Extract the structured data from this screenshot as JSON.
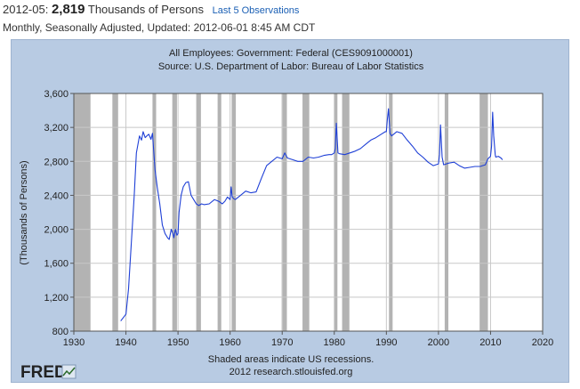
{
  "header": {
    "date": "2012-05:",
    "value": "2,819",
    "units": "Thousands of Persons",
    "last_obs_link": "Last 5 Observations",
    "subtitle": "Monthly, Seasonally Adjusted, Updated: 2012-06-01 8:45 AM CDT"
  },
  "footer": {
    "logo": "FRED",
    "note": "Shaded areas indicate US recessions.",
    "source": "2012 research.stlouisfed.org"
  },
  "colors": {
    "panel": "#b8cbe3",
    "line": "#1e3fd6",
    "recession": "#b3b3b3"
  },
  "chart_data": {
    "type": "line",
    "title": "All Employees: Government: Federal (CES9091000001)",
    "subtitle": "Source: U.S. Department of Labor: Bureau of Labor Statistics",
    "xlabel": "",
    "ylabel": "(Thousands of Persons)",
    "xlim": [
      1930,
      2020
    ],
    "ylim": [
      800,
      3600
    ],
    "x_ticks": [
      "1930",
      "1940",
      "1950",
      "1960",
      "1970",
      "1980",
      "1990",
      "2000",
      "2010",
      "2020"
    ],
    "y_ticks": [
      "800",
      "1,200",
      "1,600",
      "2,000",
      "2,400",
      "2,800",
      "3,200",
      "3,600"
    ],
    "grid": true,
    "recessions": [
      [
        1929.6,
        1933.2
      ],
      [
        1937.4,
        1938.5
      ],
      [
        1945.1,
        1945.8
      ],
      [
        1948.9,
        1949.8
      ],
      [
        1953.5,
        1954.4
      ],
      [
        1957.6,
        1958.3
      ],
      [
        1960.3,
        1961.1
      ],
      [
        1969.9,
        1970.9
      ],
      [
        1973.9,
        1975.2
      ],
      [
        1980.0,
        1980.6
      ],
      [
        1981.5,
        1982.9
      ],
      [
        1990.5,
        1991.2
      ],
      [
        2001.2,
        2001.9
      ],
      [
        2007.9,
        2009.5
      ]
    ],
    "series": [
      {
        "name": "",
        "x": [
          1939.0,
          1940.0,
          1940.5,
          1941.0,
          1941.6,
          1942.0,
          1942.6,
          1943.0,
          1943.3,
          1943.7,
          1944.0,
          1944.4,
          1944.8,
          1945.1,
          1945.3,
          1945.6,
          1946.0,
          1946.5,
          1947.0,
          1947.5,
          1948.0,
          1948.3,
          1948.7,
          1949.0,
          1949.2,
          1949.5,
          1949.8,
          1950.0,
          1950.2,
          1950.6,
          1951.0,
          1951.5,
          1952.0,
          1952.5,
          1953.0,
          1953.5,
          1954.0,
          1954.5,
          1955.0,
          1956.0,
          1957.0,
          1957.8,
          1958.5,
          1959.0,
          1959.5,
          1960.0,
          1960.2,
          1960.4,
          1960.7,
          1961.0,
          1962.0,
          1963.0,
          1964.0,
          1965.0,
          1966.0,
          1967.0,
          1968.0,
          1969.0,
          1970.0,
          1970.5,
          1971.0,
          1972.0,
          1973.0,
          1974.0,
          1975.0,
          1976.0,
          1977.0,
          1978.0,
          1979.0,
          1979.5,
          1980.0,
          1980.2,
          1980.4,
          1980.7,
          1981.0,
          1982.0,
          1983.0,
          1984.0,
          1985.0,
          1986.0,
          1987.0,
          1988.0,
          1989.0,
          1989.8,
          1990.0,
          1990.2,
          1990.4,
          1990.7,
          1991.0,
          1992.0,
          1993.0,
          1994.0,
          1995.0,
          1996.0,
          1997.0,
          1998.0,
          1999.0,
          2000.0,
          2000.2,
          2000.4,
          2000.7,
          2001.0,
          2002.0,
          2003.0,
          2004.0,
          2005.0,
          2006.0,
          2007.0,
          2008.0,
          2009.0,
          2009.5,
          2010.0,
          2010.2,
          2010.4,
          2010.6,
          2010.9,
          2011.0,
          2011.5,
          2012.0,
          2012.3
        ],
        "values": [
          920,
          1000,
          1300,
          1800,
          2400,
          2900,
          3100,
          3050,
          3150,
          3080,
          3100,
          3120,
          3060,
          3130,
          2950,
          2700,
          2500,
          2300,
          2050,
          1950,
          1900,
          1880,
          2000,
          1950,
          1900,
          2000,
          1930,
          1950,
          2200,
          2400,
          2500,
          2550,
          2560,
          2400,
          2350,
          2300,
          2280,
          2300,
          2290,
          2300,
          2350,
          2330,
          2300,
          2330,
          2380,
          2350,
          2500,
          2380,
          2360,
          2350,
          2400,
          2450,
          2430,
          2440,
          2600,
          2750,
          2800,
          2850,
          2830,
          2900,
          2840,
          2820,
          2800,
          2800,
          2850,
          2840,
          2850,
          2870,
          2880,
          2880,
          2900,
          2950,
          3250,
          2900,
          2890,
          2880,
          2900,
          2920,
          2950,
          3000,
          3050,
          3080,
          3120,
          3150,
          3150,
          3300,
          3420,
          3130,
          3100,
          3150,
          3130,
          3050,
          2980,
          2900,
          2850,
          2790,
          2750,
          2770,
          2880,
          3230,
          2850,
          2760,
          2780,
          2790,
          2750,
          2720,
          2730,
          2740,
          2740,
          2760,
          2830,
          2860,
          2980,
          3380,
          3100,
          2880,
          2850,
          2860,
          2840,
          2819
        ]
      }
    ]
  }
}
